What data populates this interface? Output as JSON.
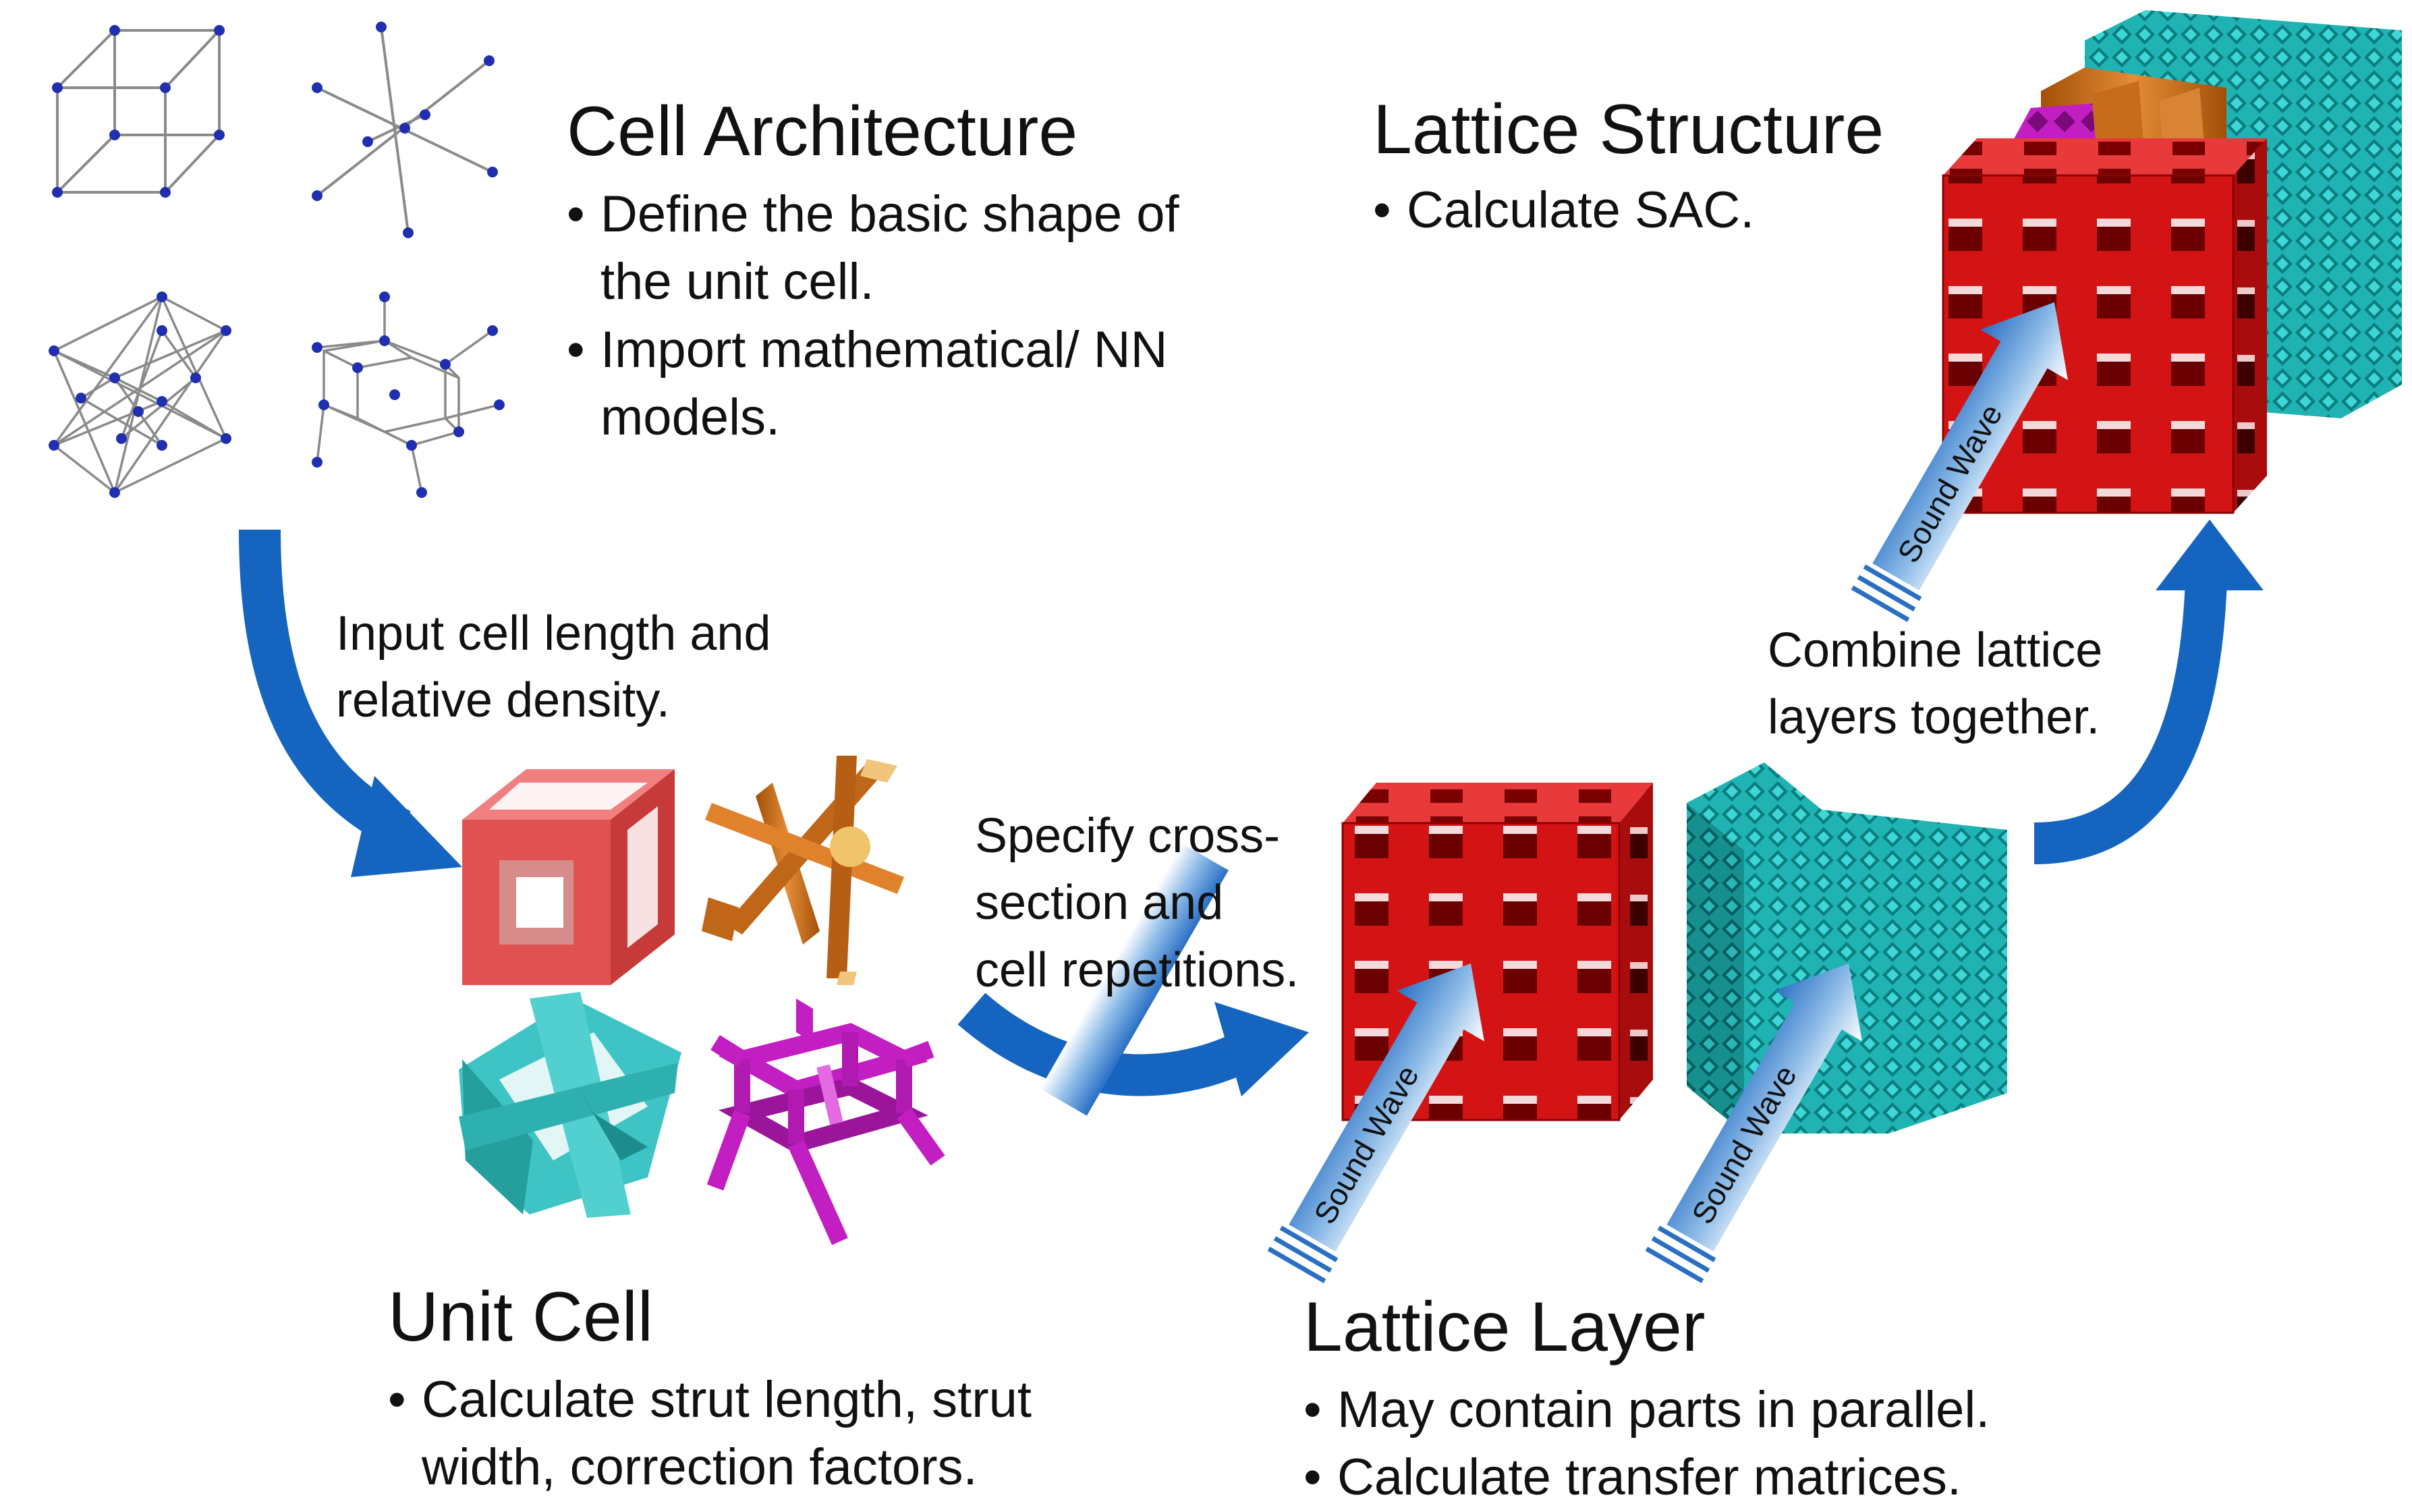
{
  "stages": {
    "cell_architecture": {
      "title": "Cell Architecture",
      "bullets": [
        "Define the basic shape of\nthe unit cell.",
        "Import mathematical/ NN\nmodels."
      ]
    },
    "unit_cell": {
      "title": "Unit Cell",
      "bullets": [
        "Calculate strut length, strut\nwidth, correction factors."
      ]
    },
    "lattice_layer": {
      "title": "Lattice Layer",
      "bullets": [
        "May contain parts in parallel.",
        "Calculate transfer matrices."
      ]
    },
    "lattice_structure": {
      "title": "Lattice Structure",
      "bullets": [
        "Calculate SAC."
      ]
    }
  },
  "transitions": {
    "arch_to_cell": [
      "Input cell length and",
      "relative density."
    ],
    "cell_to_layer": [
      "Specify cross-",
      "section and",
      "cell repetitions."
    ],
    "layer_to_structure": [
      "Combine lattice",
      "layers together."
    ]
  },
  "sound_wave_label": "Sound Wave",
  "colors": {
    "arrow": "#1565c0",
    "node": "#1f2fb0",
    "edge": "#8a8a8a",
    "red_cell": "#e05252",
    "red_layer": "#d11414",
    "orange": "#d2731c",
    "cyan": "#3ec4c4",
    "teal_layer": "#22b7b7",
    "magenta": "#c21ec2"
  }
}
